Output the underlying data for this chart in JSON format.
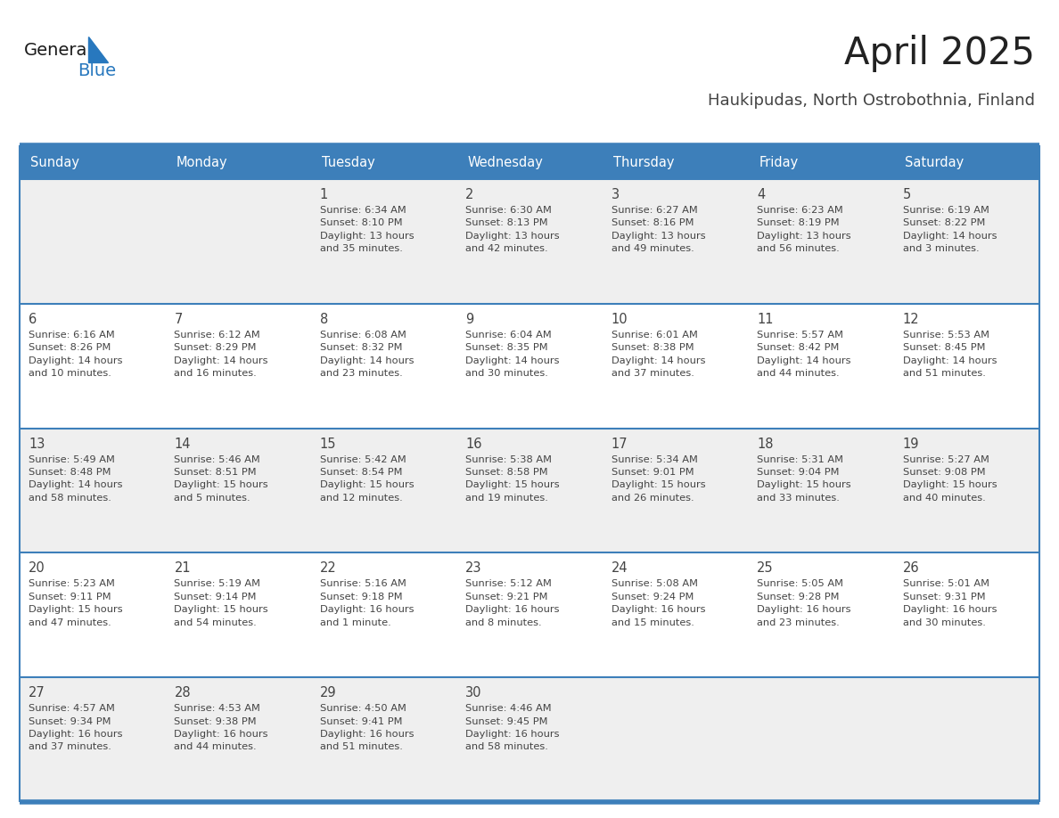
{
  "title": "April 2025",
  "subtitle": "Haukipudas, North Ostrobothnia, Finland",
  "days_of_week": [
    "Sunday",
    "Monday",
    "Tuesday",
    "Wednesday",
    "Thursday",
    "Friday",
    "Saturday"
  ],
  "header_bg": "#3d7fba",
  "header_text": "#ffffff",
  "row_bg_odd": "#efefef",
  "row_bg_even": "#ffffff",
  "border_color": "#3d7fba",
  "text_color": "#444444",
  "title_color": "#222222",
  "subtitle_color": "#444444",
  "logo_general_color": "#1a1a1a",
  "logo_blue_color": "#2878be",
  "logo_triangle_color": "#2878be",
  "calendar_data": [
    [
      "",
      "",
      "1\nSunrise: 6:34 AM\nSunset: 8:10 PM\nDaylight: 13 hours\nand 35 minutes.",
      "2\nSunrise: 6:30 AM\nSunset: 8:13 PM\nDaylight: 13 hours\nand 42 minutes.",
      "3\nSunrise: 6:27 AM\nSunset: 8:16 PM\nDaylight: 13 hours\nand 49 minutes.",
      "4\nSunrise: 6:23 AM\nSunset: 8:19 PM\nDaylight: 13 hours\nand 56 minutes.",
      "5\nSunrise: 6:19 AM\nSunset: 8:22 PM\nDaylight: 14 hours\nand 3 minutes."
    ],
    [
      "6\nSunrise: 6:16 AM\nSunset: 8:26 PM\nDaylight: 14 hours\nand 10 minutes.",
      "7\nSunrise: 6:12 AM\nSunset: 8:29 PM\nDaylight: 14 hours\nand 16 minutes.",
      "8\nSunrise: 6:08 AM\nSunset: 8:32 PM\nDaylight: 14 hours\nand 23 minutes.",
      "9\nSunrise: 6:04 AM\nSunset: 8:35 PM\nDaylight: 14 hours\nand 30 minutes.",
      "10\nSunrise: 6:01 AM\nSunset: 8:38 PM\nDaylight: 14 hours\nand 37 minutes.",
      "11\nSunrise: 5:57 AM\nSunset: 8:42 PM\nDaylight: 14 hours\nand 44 minutes.",
      "12\nSunrise: 5:53 AM\nSunset: 8:45 PM\nDaylight: 14 hours\nand 51 minutes."
    ],
    [
      "13\nSunrise: 5:49 AM\nSunset: 8:48 PM\nDaylight: 14 hours\nand 58 minutes.",
      "14\nSunrise: 5:46 AM\nSunset: 8:51 PM\nDaylight: 15 hours\nand 5 minutes.",
      "15\nSunrise: 5:42 AM\nSunset: 8:54 PM\nDaylight: 15 hours\nand 12 minutes.",
      "16\nSunrise: 5:38 AM\nSunset: 8:58 PM\nDaylight: 15 hours\nand 19 minutes.",
      "17\nSunrise: 5:34 AM\nSunset: 9:01 PM\nDaylight: 15 hours\nand 26 minutes.",
      "18\nSunrise: 5:31 AM\nSunset: 9:04 PM\nDaylight: 15 hours\nand 33 minutes.",
      "19\nSunrise: 5:27 AM\nSunset: 9:08 PM\nDaylight: 15 hours\nand 40 minutes."
    ],
    [
      "20\nSunrise: 5:23 AM\nSunset: 9:11 PM\nDaylight: 15 hours\nand 47 minutes.",
      "21\nSunrise: 5:19 AM\nSunset: 9:14 PM\nDaylight: 15 hours\nand 54 minutes.",
      "22\nSunrise: 5:16 AM\nSunset: 9:18 PM\nDaylight: 16 hours\nand 1 minute.",
      "23\nSunrise: 5:12 AM\nSunset: 9:21 PM\nDaylight: 16 hours\nand 8 minutes.",
      "24\nSunrise: 5:08 AM\nSunset: 9:24 PM\nDaylight: 16 hours\nand 15 minutes.",
      "25\nSunrise: 5:05 AM\nSunset: 9:28 PM\nDaylight: 16 hours\nand 23 minutes.",
      "26\nSunrise: 5:01 AM\nSunset: 9:31 PM\nDaylight: 16 hours\nand 30 minutes."
    ],
    [
      "27\nSunrise: 4:57 AM\nSunset: 9:34 PM\nDaylight: 16 hours\nand 37 minutes.",
      "28\nSunrise: 4:53 AM\nSunset: 9:38 PM\nDaylight: 16 hours\nand 44 minutes.",
      "29\nSunrise: 4:50 AM\nSunset: 9:41 PM\nDaylight: 16 hours\nand 51 minutes.",
      "30\nSunrise: 4:46 AM\nSunset: 9:45 PM\nDaylight: 16 hours\nand 58 minutes.",
      "",
      "",
      ""
    ]
  ]
}
